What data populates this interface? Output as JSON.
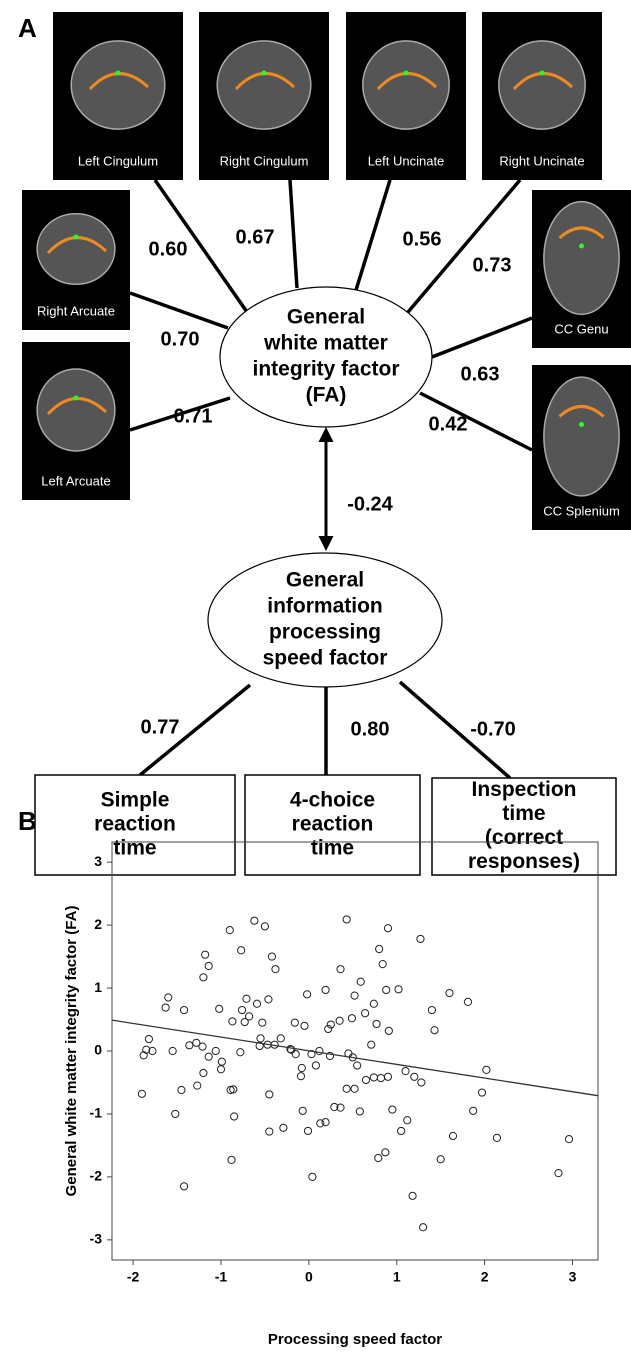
{
  "panel_labels": [
    "A",
    "B"
  ],
  "diagram": {
    "tracts": [
      {
        "label": "Left Cingulum",
        "loading": "0.60"
      },
      {
        "label": "Right Cingulum",
        "loading": "0.67"
      },
      {
        "label": "Left Uncinate",
        "loading": "0.56"
      },
      {
        "label": "Right Uncinate",
        "loading": "0.73"
      },
      {
        "label": "Right Arcuate",
        "loading": "0.70"
      },
      {
        "label": "Left Arcuate",
        "loading": "0.71"
      },
      {
        "label": "CC Genu",
        "loading": "0.63"
      },
      {
        "label": "CC Splenium",
        "loading": "0.42"
      }
    ],
    "factors": [
      {
        "lines": [
          "General",
          "white matter",
          "integrity factor",
          "(FA)"
        ]
      },
      {
        "lines": [
          "General",
          "information",
          "processing",
          "speed factor"
        ]
      }
    ],
    "correlation": "-0.24",
    "tests": [
      {
        "lines": [
          "Simple",
          "reaction",
          "time"
        ],
        "loading": "0.77"
      },
      {
        "lines": [
          "4-choice",
          "reaction",
          "time"
        ],
        "loading": "0.80"
      },
      {
        "lines": [
          "Inspection",
          "time",
          "(correct",
          "responses)"
        ],
        "loading": "-0.70"
      }
    ]
  },
  "chart_data": {
    "type": "scatter",
    "x_label": "Processing speed factor",
    "y_label": "General white matter integrity factor (FA)",
    "xlim": [
      -2.24,
      3.29
    ],
    "ylim": [
      -3.32,
      3.32
    ],
    "xticks": [
      -2,
      -1,
      0,
      1,
      2,
      3
    ],
    "yticks": [
      -3,
      -2,
      -1,
      0,
      1,
      2,
      3
    ],
    "color": "#222222",
    "x": [
      -0.9,
      -0.62,
      -0.5,
      0.43,
      0.9,
      1.27,
      -0.77,
      -1.18,
      -1.14,
      -1.2,
      -0.42,
      -0.38,
      0.36,
      0.84,
      0.8,
      0.59,
      -0.71,
      -0.59,
      -0.46,
      -0.02,
      0.19,
      0.52,
      0.74,
      1.02,
      0.88,
      1.6,
      1.81,
      1.4,
      -1.6,
      -1.63,
      -1.42,
      -1.02,
      -0.76,
      -0.68,
      -0.73,
      -0.87,
      -0.53,
      -0.16,
      -0.05,
      0.25,
      0.35,
      0.49,
      0.64,
      0.77,
      0.91,
      1.43,
      -1.82,
      -1.85,
      -1.88,
      -1.78,
      -1.55,
      -1.28,
      -1.36,
      -1.21,
      -1.06,
      -1.14,
      -0.99,
      -1.0,
      -1.2,
      -1.27,
      -1.45,
      -1.52,
      -1.9,
      -1.42,
      -0.86,
      -0.89,
      -0.85,
      -0.88,
      -0.78,
      -0.56,
      -0.55,
      -0.47,
      -0.39,
      -0.32,
      -0.21,
      -0.2,
      -0.08,
      -0.09,
      0.03,
      0.08,
      0.12,
      0.22,
      0.24,
      0.45,
      0.5,
      0.55,
      0.65,
      0.71,
      0.74,
      0.82,
      0.9,
      1.1,
      1.2,
      1.28,
      -0.45,
      -0.29,
      -0.07,
      -0.01,
      0.13,
      0.19,
      0.29,
      0.36,
      0.43,
      0.52,
      0.58,
      0.79,
      0.87,
      0.95,
      1.05,
      1.12,
      1.18,
      1.3,
      1.5,
      1.64,
      1.87,
      1.97,
      2.02,
      2.14,
      2.84,
      2.96,
      -0.45,
      0.04,
      -0.15
    ],
    "values": [
      1.92,
      2.07,
      1.98,
      2.09,
      1.95,
      1.78,
      1.6,
      1.53,
      1.35,
      1.17,
      1.5,
      1.3,
      1.3,
      1.38,
      1.62,
      1.1,
      0.83,
      0.75,
      0.82,
      0.9,
      0.97,
      0.88,
      0.75,
      0.98,
      0.97,
      0.92,
      0.78,
      0.65,
      0.85,
      0.69,
      0.65,
      0.67,
      0.65,
      0.55,
      0.46,
      0.47,
      0.45,
      0.45,
      0.4,
      0.42,
      0.48,
      0.52,
      0.6,
      0.43,
      0.32,
      0.33,
      0.19,
      0.02,
      -0.07,
      0.0,
      0.0,
      0.13,
      0.09,
      0.07,
      0.0,
      -0.09,
      -0.17,
      -0.29,
      -0.35,
      -0.55,
      -0.62,
      -1.0,
      -0.68,
      -2.15,
      -0.61,
      -0.62,
      -1.04,
      -1.73,
      -0.02,
      0.08,
      0.2,
      0.1,
      0.1,
      0.2,
      0.03,
      0.02,
      -0.27,
      -0.4,
      -0.05,
      -0.23,
      0.0,
      0.35,
      -0.08,
      -0.04,
      -0.1,
      -0.23,
      -0.46,
      0.1,
      -0.42,
      -0.43,
      -0.41,
      -0.32,
      -0.41,
      -0.5,
      -0.69,
      -1.22,
      -0.95,
      -1.27,
      -1.15,
      -1.13,
      -0.89,
      -0.9,
      -0.6,
      -0.6,
      -0.96,
      -1.7,
      -1.61,
      -0.93,
      -1.27,
      -1.1,
      -2.3,
      -2.8,
      -1.72,
      -1.35,
      -0.95,
      -0.66,
      -0.3,
      -1.38,
      -1.94,
      -1.4,
      -1.28,
      -2.0,
      -0.05
    ],
    "fit": {
      "x": [
        -2.24,
        3.29
      ],
      "values": [
        0.49,
        -0.71
      ]
    }
  }
}
